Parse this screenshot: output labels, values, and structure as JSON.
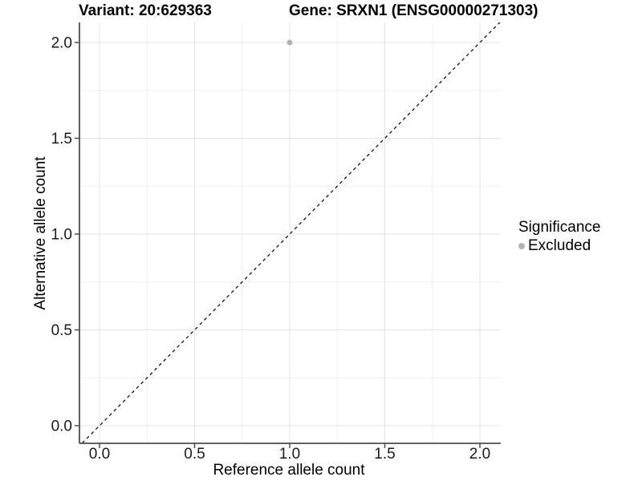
{
  "header": {
    "variant_title": "Variant: 20:629363",
    "gene_title": "Gene: SRXN1 (ENSG00000271303)"
  },
  "axes": {
    "x_label": "Reference allele count",
    "y_label": "Alternative allele count"
  },
  "legend": {
    "title": "Significance",
    "items": [
      {
        "label": "Excluded",
        "color": "#b3b3b3",
        "marker": "circle"
      }
    ]
  },
  "chart_data": {
    "type": "scatter",
    "title": "Variant: 20:629363 / Gene: SRXN1 (ENSG00000271303)",
    "xlabel": "Reference allele count",
    "ylabel": "Alternative allele count",
    "xlim": [
      -0.105,
      2.11
    ],
    "ylim": [
      -0.105,
      2.105
    ],
    "x_ticks": [
      0,
      0.5,
      1,
      1.5,
      2
    ],
    "y_ticks": [
      0,
      0.5,
      1,
      1.5,
      2
    ],
    "x_tick_labels": [
      "0.0",
      "0.5",
      "1.0",
      "1.5",
      "2.0"
    ],
    "y_tick_labels": [
      "0.0",
      "0.5",
      "1.0",
      "1.5",
      "2.0"
    ],
    "grid": {
      "show": true,
      "minor": true,
      "major_color": "#e3e3e3",
      "minor_color": "#f0f0f0"
    },
    "reference_line": {
      "slope": 1,
      "intercept": 0,
      "style": "dashed",
      "color": "#000000"
    },
    "series": [
      {
        "name": "Excluded",
        "color": "#b3b3b3",
        "marker": "circle",
        "points": [
          {
            "x": 1.0,
            "y": 2.0
          }
        ]
      }
    ],
    "legend_position": "right",
    "colors": {
      "axis": "#4d4d4d",
      "tick_text": "#1a1a1a",
      "background": "#ffffff"
    }
  }
}
